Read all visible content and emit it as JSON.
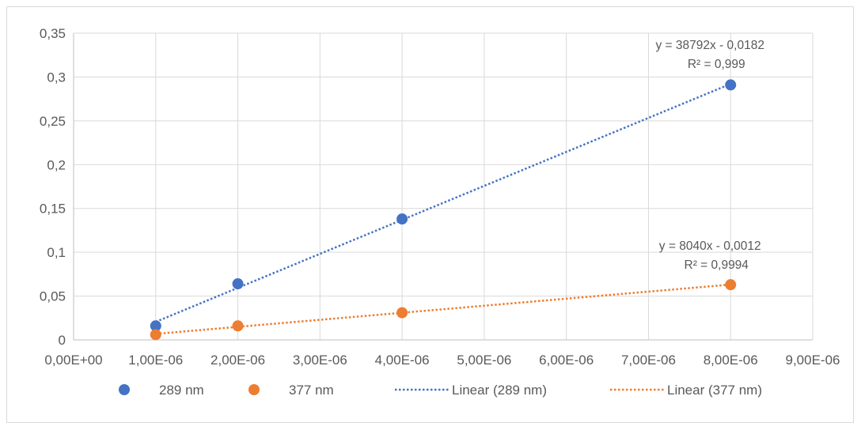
{
  "chart_data": {
    "type": "scatter",
    "title": "",
    "xlabel": "",
    "ylabel": "",
    "xlim": [
      0,
      9e-06
    ],
    "ylim": [
      0,
      0.35
    ],
    "x_ticks": [
      0,
      1e-06,
      2e-06,
      3e-06,
      4e-06,
      5e-06,
      6e-06,
      7e-06,
      8e-06,
      9e-06
    ],
    "x_tick_labels": [
      "0,00E+00",
      "1,00E-06",
      "2,00E-06",
      "3,00E-06",
      "4,00E-06",
      "5,00E-06",
      "6,00E-06",
      "7,00E-06",
      "8,00E-06",
      "9,00E-06"
    ],
    "y_ticks": [
      0,
      0.05,
      0.1,
      0.15,
      0.2,
      0.25,
      0.3,
      0.35
    ],
    "y_tick_labels": [
      "0",
      "0,05",
      "0,1",
      "0,15",
      "0,2",
      "0,25",
      "0,3",
      "0,35"
    ],
    "grid": true,
    "legend_position": "bottom",
    "series": [
      {
        "name": "289 nm",
        "color": "#4472c4",
        "x": [
          1e-06,
          2e-06,
          4e-06,
          8e-06
        ],
        "y": [
          0.016,
          0.064,
          0.138,
          0.291
        ],
        "trendline": {
          "name": "Linear (289 nm)",
          "slope": 38792,
          "intercept": -0.0182,
          "equation": "y = 38792x - 0,0182",
          "r2": "R² = 0,999"
        }
      },
      {
        "name": "377 nm",
        "color": "#ed7d31",
        "x": [
          1e-06,
          2e-06,
          4e-06,
          8e-06
        ],
        "y": [
          0.006,
          0.016,
          0.031,
          0.063
        ],
        "trendline": {
          "name": "Linear (377 nm)",
          "slope": 8040,
          "intercept": -0.0012,
          "equation": "y = 8040x - 0,0012",
          "r2": "R² = 0,9994"
        }
      }
    ]
  }
}
